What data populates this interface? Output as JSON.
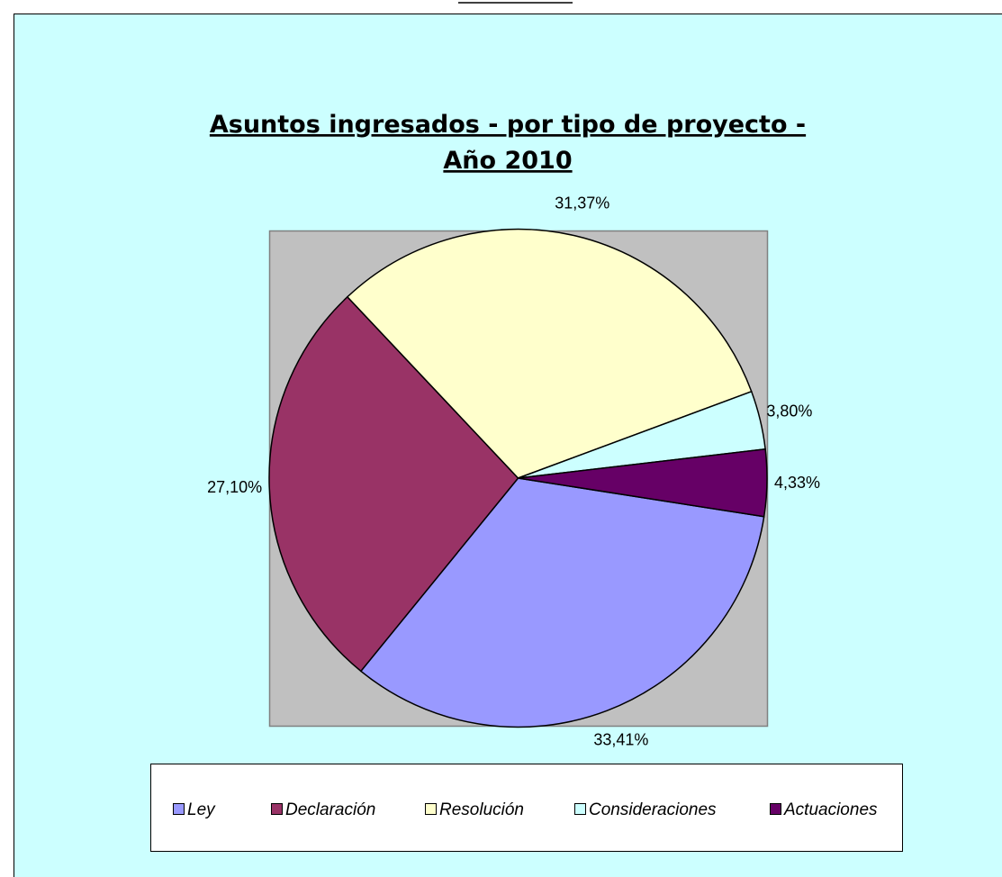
{
  "chart_data": {
    "type": "pie",
    "title": [
      "Asuntos ingresados - por tipo de proyecto -",
      "Año 2010"
    ],
    "categories": [
      "Ley",
      "Declaración",
      "Resolución",
      "Consideraciones",
      "Actuaciones"
    ],
    "values": [
      33.41,
      27.1,
      31.37,
      3.8,
      4.33
    ],
    "value_labels": [
      "33,41%",
      "27,10%",
      "31,37%",
      "3,80%",
      "4,33%"
    ],
    "colors": [
      "#9999ff",
      "#993366",
      "#ffffcc",
      "#ccffff",
      "#660066"
    ],
    "legend": "bottom"
  }
}
